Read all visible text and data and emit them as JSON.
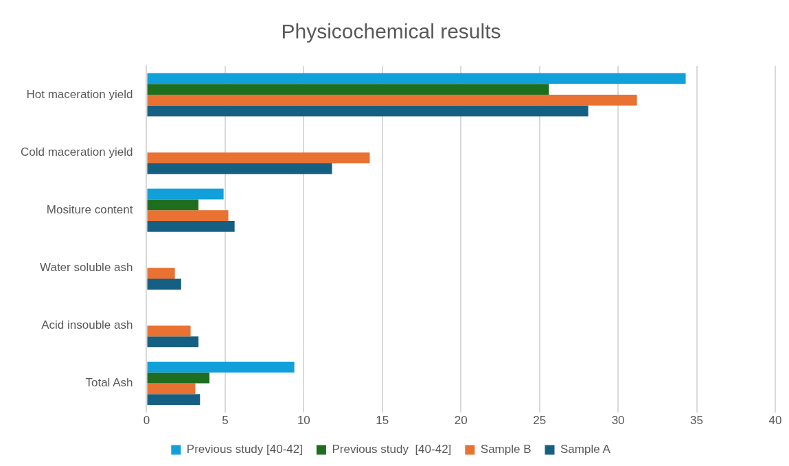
{
  "chart_data": {
    "type": "bar",
    "orientation": "horizontal",
    "title": "Physicochemical results",
    "categories": [
      "Hot maceration yield",
      "Cold maceration yield",
      "Mositure content",
      "Water soluble ash",
      "Acid insouble ash",
      "Total Ash"
    ],
    "series": [
      {
        "name": "Previous study [40-42]",
        "color": "#11a0d9",
        "values": [
          34.3,
          null,
          4.9,
          null,
          null,
          9.4
        ]
      },
      {
        "name": "Previous study  [40-42]",
        "color": "#1f6e1f",
        "values": [
          25.6,
          null,
          3.3,
          null,
          null,
          4.0
        ]
      },
      {
        "name": "Sample B",
        "color": "#e97132",
        "values": [
          31.2,
          14.2,
          5.2,
          1.8,
          2.8,
          3.1
        ]
      },
      {
        "name": "Sample A",
        "color": "#156082",
        "values": [
          28.1,
          11.8,
          5.6,
          2.2,
          3.3,
          3.4
        ]
      }
    ],
    "xlim": [
      0,
      40
    ],
    "xticks": [
      0,
      5,
      10,
      15,
      20,
      25,
      30,
      35,
      40
    ],
    "grid": "x",
    "legend": "bottom"
  }
}
